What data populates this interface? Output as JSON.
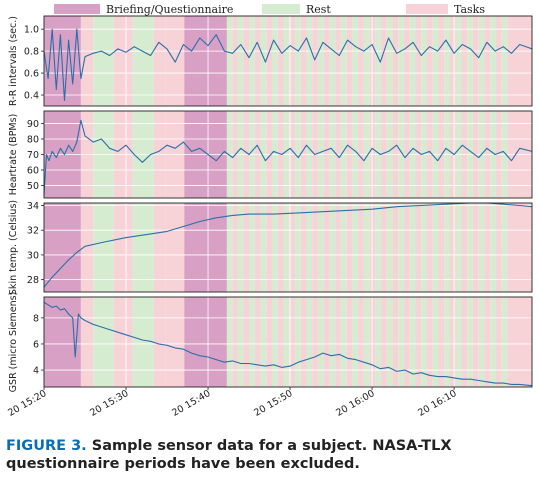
{
  "figure": {
    "caption_label": "FIGURE 3.",
    "caption_text": "Sample sensor data for a subject. NASA-TLX questionnaire periods have been excluded."
  },
  "colors": {
    "line": "#2b6fa8",
    "briefing": "#d9a0c6",
    "rest": "#d6ecd0",
    "tasks": "#f7d3d8",
    "axis": "#222222",
    "grid": "#ffffff"
  },
  "chart_data": {
    "type": "line",
    "legend": {
      "placement": "top",
      "entries": [
        {
          "key": "briefing",
          "label": "Briefing/Questionnaire"
        },
        {
          "key": "rest",
          "label": "Rest"
        },
        {
          "key": "tasks",
          "label": "Tasks"
        }
      ]
    },
    "x_axis": {
      "min_minutes": 0,
      "max_minutes": 59.5,
      "tick_minutes": [
        0,
        10,
        20,
        30,
        40,
        50
      ],
      "tick_labels": [
        "20 15:20",
        "20 15:30",
        "20 15:40",
        "20 15:50",
        "20 16:00",
        "20 16:10"
      ]
    },
    "periods": [
      {
        "type": "briefing",
        "start": 0.0,
        "end": 4.5
      },
      {
        "type": "tasks",
        "start": 4.5,
        "end": 6.0
      },
      {
        "type": "rest",
        "start": 6.0,
        "end": 8.5
      },
      {
        "type": "tasks",
        "start": 8.5,
        "end": 10.8
      },
      {
        "type": "rest",
        "start": 10.8,
        "end": 13.4
      },
      {
        "type": "tasks",
        "start": 13.4,
        "end": 14.8
      },
      {
        "type": "tasks",
        "start": 14.8,
        "end": 17.1
      },
      {
        "type": "briefing",
        "start": 17.1,
        "end": 22.3
      },
      {
        "type": "rest",
        "start": 22.3,
        "end": 23.0
      },
      {
        "type": "tasks",
        "start": 23.0,
        "end": 23.6
      },
      {
        "type": "rest",
        "start": 23.6,
        "end": 24.3
      },
      {
        "type": "tasks",
        "start": 24.3,
        "end": 25.0
      },
      {
        "type": "rest",
        "start": 25.0,
        "end": 25.7
      },
      {
        "type": "tasks",
        "start": 25.7,
        "end": 26.4
      },
      {
        "type": "rest",
        "start": 26.4,
        "end": 27.1
      },
      {
        "type": "tasks",
        "start": 27.1,
        "end": 27.8
      },
      {
        "type": "rest",
        "start": 27.8,
        "end": 28.5
      },
      {
        "type": "tasks",
        "start": 28.5,
        "end": 29.2
      },
      {
        "type": "rest",
        "start": 29.2,
        "end": 29.9
      },
      {
        "type": "tasks",
        "start": 29.9,
        "end": 30.6
      },
      {
        "type": "rest",
        "start": 30.6,
        "end": 31.3
      },
      {
        "type": "tasks",
        "start": 31.3,
        "end": 32.0
      },
      {
        "type": "rest",
        "start": 32.0,
        "end": 32.7
      },
      {
        "type": "tasks",
        "start": 32.7,
        "end": 33.4
      },
      {
        "type": "rest",
        "start": 33.4,
        "end": 34.1
      },
      {
        "type": "tasks",
        "start": 34.1,
        "end": 34.8
      },
      {
        "type": "rest",
        "start": 34.8,
        "end": 35.5
      },
      {
        "type": "tasks",
        "start": 35.5,
        "end": 36.2
      },
      {
        "type": "rest",
        "start": 36.2,
        "end": 36.9
      },
      {
        "type": "tasks",
        "start": 36.9,
        "end": 37.6
      },
      {
        "type": "rest",
        "start": 37.6,
        "end": 38.3
      },
      {
        "type": "tasks",
        "start": 38.3,
        "end": 39.0
      },
      {
        "type": "rest",
        "start": 39.0,
        "end": 39.7
      },
      {
        "type": "tasks",
        "start": 39.7,
        "end": 40.4
      },
      {
        "type": "rest",
        "start": 40.4,
        "end": 41.1
      },
      {
        "type": "tasks",
        "start": 41.1,
        "end": 41.8
      },
      {
        "type": "rest",
        "start": 41.8,
        "end": 42.5
      },
      {
        "type": "tasks",
        "start": 42.5,
        "end": 43.2
      },
      {
        "type": "rest",
        "start": 43.2,
        "end": 43.9
      },
      {
        "type": "tasks",
        "start": 43.9,
        "end": 44.6
      },
      {
        "type": "rest",
        "start": 44.6,
        "end": 45.3
      },
      {
        "type": "tasks",
        "start": 45.3,
        "end": 46.0
      },
      {
        "type": "rest",
        "start": 46.0,
        "end": 46.7
      },
      {
        "type": "tasks",
        "start": 46.7,
        "end": 47.4
      },
      {
        "type": "rest",
        "start": 47.4,
        "end": 48.1
      },
      {
        "type": "tasks",
        "start": 48.1,
        "end": 48.8
      },
      {
        "type": "rest",
        "start": 48.8,
        "end": 49.5
      },
      {
        "type": "tasks",
        "start": 49.5,
        "end": 50.2
      },
      {
        "type": "rest",
        "start": 50.2,
        "end": 50.9
      },
      {
        "type": "tasks",
        "start": 50.9,
        "end": 51.6
      },
      {
        "type": "rest",
        "start": 51.6,
        "end": 52.3
      },
      {
        "type": "tasks",
        "start": 52.3,
        "end": 53.0
      },
      {
        "type": "rest",
        "start": 53.0,
        "end": 53.7
      },
      {
        "type": "tasks",
        "start": 53.7,
        "end": 54.4
      },
      {
        "type": "rest",
        "start": 54.4,
        "end": 55.1
      },
      {
        "type": "tasks",
        "start": 55.1,
        "end": 55.8
      },
      {
        "type": "rest",
        "start": 55.8,
        "end": 56.5
      },
      {
        "type": "tasks",
        "start": 56.5,
        "end": 59.5
      }
    ],
    "subplots": [
      {
        "ylabel": "R-R intervals (sec.)",
        "ylim": [
          0.3,
          1.12
        ],
        "yticks": [
          0.4,
          0.6,
          0.8,
          1.0
        ],
        "ytick_labels": [
          "0.4",
          "0.6",
          "0.8",
          "1.0"
        ],
        "x": [
          0,
          0.5,
          1,
          1.5,
          2,
          2.5,
          3,
          3.5,
          4,
          4.5,
          5,
          6,
          7,
          8,
          9,
          10,
          11,
          12,
          13,
          14,
          15,
          16,
          17,
          18,
          19,
          20,
          21,
          22,
          23,
          24,
          25,
          26,
          27,
          28,
          29,
          30,
          31,
          32,
          33,
          34,
          35,
          36,
          37,
          38,
          39,
          40,
          41,
          42,
          43,
          44,
          45,
          46,
          47,
          48,
          49,
          50,
          51,
          52,
          53,
          54,
          55,
          56,
          57,
          58,
          59.5
        ],
        "y": [
          0.8,
          0.55,
          1.0,
          0.45,
          0.95,
          0.35,
          0.9,
          0.5,
          1.0,
          0.55,
          0.75,
          0.78,
          0.8,
          0.76,
          0.82,
          0.79,
          0.84,
          0.8,
          0.76,
          0.88,
          0.82,
          0.7,
          0.86,
          0.8,
          0.92,
          0.85,
          0.95,
          0.8,
          0.78,
          0.86,
          0.74,
          0.88,
          0.7,
          0.9,
          0.78,
          0.85,
          0.8,
          0.92,
          0.72,
          0.88,
          0.82,
          0.76,
          0.9,
          0.84,
          0.8,
          0.86,
          0.7,
          0.92,
          0.78,
          0.82,
          0.88,
          0.76,
          0.84,
          0.8,
          0.9,
          0.78,
          0.86,
          0.82,
          0.74,
          0.88,
          0.8,
          0.84,
          0.78,
          0.86,
          0.82
        ]
      },
      {
        "ylabel": "Heartrate (BPMs)",
        "ylim": [
          42,
          98
        ],
        "yticks": [
          50,
          60,
          70,
          80,
          90
        ],
        "ytick_labels": [
          "50",
          "60",
          "70",
          "80",
          "90"
        ],
        "x": [
          0,
          0.3,
          0.6,
          1,
          1.5,
          2,
          2.5,
          3,
          3.5,
          4,
          4.5,
          5,
          6,
          7,
          8,
          9,
          10,
          11,
          12,
          13,
          14,
          15,
          16,
          17,
          18,
          19,
          20,
          21,
          22,
          23,
          24,
          25,
          26,
          27,
          28,
          29,
          30,
          31,
          32,
          33,
          34,
          35,
          36,
          37,
          38,
          39,
          40,
          41,
          42,
          43,
          44,
          45,
          46,
          47,
          48,
          49,
          50,
          51,
          52,
          53,
          54,
          55,
          56,
          57,
          58,
          59.5
        ],
        "y": [
          44,
          70,
          66,
          72,
          68,
          74,
          70,
          76,
          72,
          78,
          92,
          82,
          78,
          80,
          74,
          72,
          76,
          70,
          65,
          70,
          72,
          76,
          74,
          78,
          72,
          74,
          70,
          66,
          72,
          68,
          74,
          70,
          76,
          66,
          72,
          70,
          74,
          68,
          76,
          70,
          72,
          74,
          68,
          76,
          72,
          66,
          74,
          70,
          72,
          76,
          68,
          74,
          70,
          72,
          66,
          74,
          70,
          76,
          72,
          68,
          74,
          70,
          72,
          66,
          74,
          72
        ]
      },
      {
        "ylabel": "Skin temp. (Celsius)",
        "ylim": [
          27,
          34.2
        ],
        "yticks": [
          28,
          30,
          32,
          34
        ],
        "ytick_labels": [
          "28",
          "30",
          "32",
          "34"
        ],
        "x": [
          0,
          1,
          2,
          3,
          4,
          5,
          7,
          10,
          13,
          15,
          17,
          19,
          21,
          23,
          25,
          28,
          31,
          34,
          37,
          40,
          43,
          46,
          49,
          52,
          54,
          56,
          58,
          59.5
        ],
        "y": [
          27.4,
          28.2,
          28.9,
          29.6,
          30.2,
          30.7,
          31.0,
          31.4,
          31.7,
          31.9,
          32.3,
          32.7,
          33.0,
          33.2,
          33.3,
          33.3,
          33.4,
          33.5,
          33.6,
          33.7,
          33.9,
          34.0,
          34.1,
          34.2,
          34.2,
          34.1,
          34.0,
          33.9
        ]
      },
      {
        "ylabel": "GSR (micro Siemens)",
        "ylim": [
          2.7,
          9.6
        ],
        "yticks": [
          4,
          6,
          8
        ],
        "ytick_labels": [
          "4",
          "6",
          "8"
        ],
        "x": [
          0,
          0.5,
          1,
          1.5,
          2,
          2.5,
          3,
          3.5,
          3.8,
          4.2,
          4.5,
          5,
          6,
          7,
          8,
          9,
          10,
          11,
          12,
          13,
          14,
          15,
          16,
          17,
          18,
          19,
          20,
          21,
          22,
          23,
          24,
          25,
          26,
          27,
          28,
          29,
          30,
          31,
          32,
          33,
          34,
          35,
          36,
          37,
          38,
          39,
          40,
          41,
          42,
          43,
          44,
          45,
          46,
          47,
          48,
          49,
          50,
          51,
          52,
          53,
          54,
          55,
          56,
          57,
          58,
          59.5
        ],
        "y": [
          9.2,
          9.0,
          8.8,
          8.9,
          8.6,
          8.7,
          8.3,
          8.0,
          5.0,
          8.3,
          8.0,
          7.8,
          7.5,
          7.3,
          7.1,
          6.9,
          6.7,
          6.5,
          6.3,
          6.2,
          6.0,
          5.9,
          5.7,
          5.6,
          5.3,
          5.1,
          5.0,
          4.8,
          4.6,
          4.7,
          4.5,
          4.5,
          4.4,
          4.3,
          4.4,
          4.2,
          4.3,
          4.6,
          4.8,
          5.0,
          5.3,
          5.1,
          5.2,
          4.9,
          4.8,
          4.6,
          4.4,
          4.1,
          4.2,
          3.9,
          4.0,
          3.7,
          3.8,
          3.6,
          3.5,
          3.5,
          3.4,
          3.3,
          3.3,
          3.2,
          3.1,
          3.0,
          3.0,
          2.9,
          2.9,
          2.8
        ]
      }
    ]
  }
}
